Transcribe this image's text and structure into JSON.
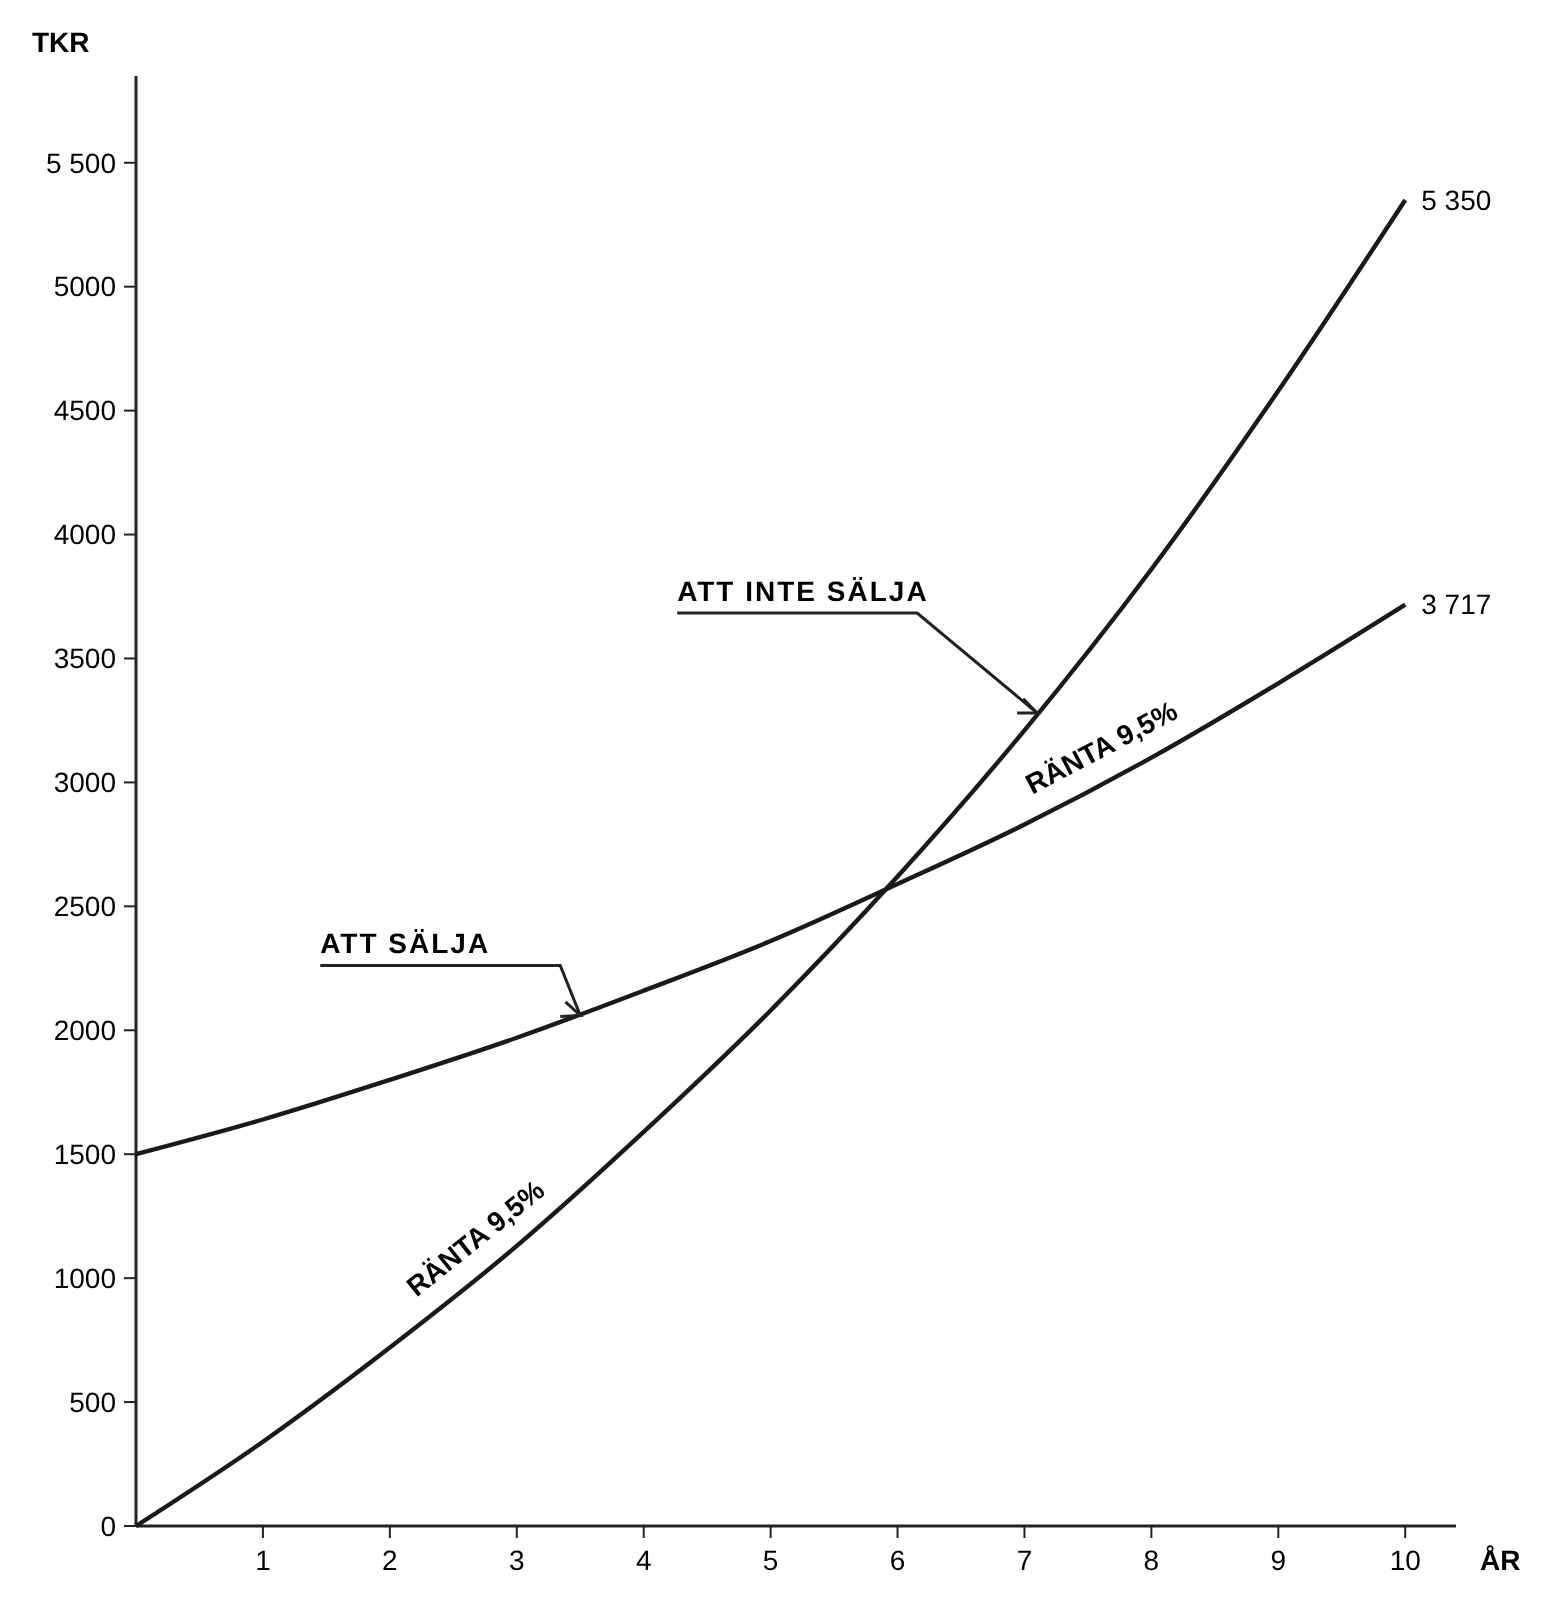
{
  "chart_data": {
    "type": "line",
    "ylabel": "TKR",
    "xlabel": "ÅR",
    "x": [
      0,
      1,
      2,
      3,
      4,
      5,
      6,
      7,
      8,
      9,
      10
    ],
    "series": [
      {
        "color": "#1a1a1a",
        "values": [
          1500,
          1640,
          1800,
          1970,
          2160,
          2360,
          2590,
          2830,
          3100,
          3400,
          3717
        ],
        "value_labels": [
          null,
          null,
          null,
          null,
          null,
          null,
          null,
          null,
          null,
          null,
          "3 717"
        ]
      },
      {
        "color": "#1a1a1a",
        "values": [
          0,
          340,
          720,
          1130,
          1590,
          2080,
          2620,
          3210,
          3860,
          4580,
          5350
        ],
        "value_labels": [
          null,
          null,
          null,
          null,
          null,
          null,
          null,
          null,
          null,
          null,
          "5 350"
        ]
      }
    ],
    "xlim": [
      0,
      10.4
    ],
    "ylim": [
      0,
      5850
    ],
    "xticks": [
      1,
      2,
      3,
      4,
      5,
      6,
      7,
      8,
      9,
      10
    ],
    "yticks": [
      0,
      500,
      1000,
      1500,
      2000,
      2500,
      3000,
      3500,
      4000,
      4500,
      5000,
      {
        "value": 5500,
        "label": "5 500"
      }
    ],
    "annotations": [
      {
        "text": "ATT INTE SÄLJA",
        "x": 7.1,
        "y": 3280
      },
      {
        "text": "ATT SÄLJA",
        "x": 3.5,
        "y": 2060
      },
      {
        "text": "RÄNTA 9,5%",
        "x": 7.7,
        "y": 3050
      },
      {
        "text": "RÄNTA 9,5%",
        "x": 2.8,
        "y": 1080
      }
    ],
    "grid": false,
    "marker": "none",
    "line_style": "solid"
  }
}
